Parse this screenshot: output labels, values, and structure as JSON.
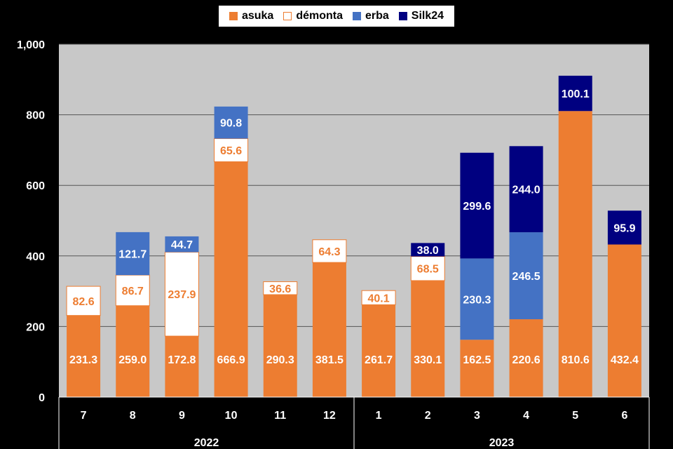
{
  "chart_data": {
    "type": "bar",
    "stacked": true,
    "categories": [
      "7",
      "8",
      "9",
      "10",
      "11",
      "12",
      "1",
      "2",
      "3",
      "4",
      "5",
      "6"
    ],
    "groups": [
      {
        "label": "2022",
        "categories": [
          "7",
          "8",
          "9",
          "10",
          "11",
          "12"
        ]
      },
      {
        "label": "2023",
        "categories": [
          "1",
          "2",
          "3",
          "4",
          "5",
          "6"
        ]
      }
    ],
    "series": [
      {
        "name": "asuka",
        "color": "#ED7D31",
        "values": [
          231.3,
          259.0,
          172.8,
          666.9,
          290.3,
          381.5,
          261.7,
          330.1,
          162.5,
          220.6,
          810.6,
          432.4
        ]
      },
      {
        "name": "démonta",
        "color": "#FFFFFF",
        "border": "#ED7D31",
        "values": [
          82.6,
          86.7,
          237.9,
          65.6,
          36.6,
          64.3,
          40.1,
          68.5,
          null,
          null,
          null,
          null
        ]
      },
      {
        "name": "erba",
        "color": "#4472C4",
        "values": [
          null,
          121.7,
          44.7,
          90.8,
          null,
          null,
          null,
          null,
          230.3,
          246.5,
          null,
          null
        ]
      },
      {
        "name": "Silk24",
        "color": "#000080",
        "values": [
          null,
          null,
          null,
          null,
          null,
          null,
          null,
          38.0,
          299.6,
          244.0,
          100.1,
          95.9
        ]
      }
    ],
    "y_ticks": [
      "0",
      "200",
      "400",
      "600",
      "800",
      "1,000"
    ],
    "ylim": [
      0,
      1000
    ],
    "grid": true,
    "legend_position": "top",
    "plot_background": "#C8C8C8"
  }
}
